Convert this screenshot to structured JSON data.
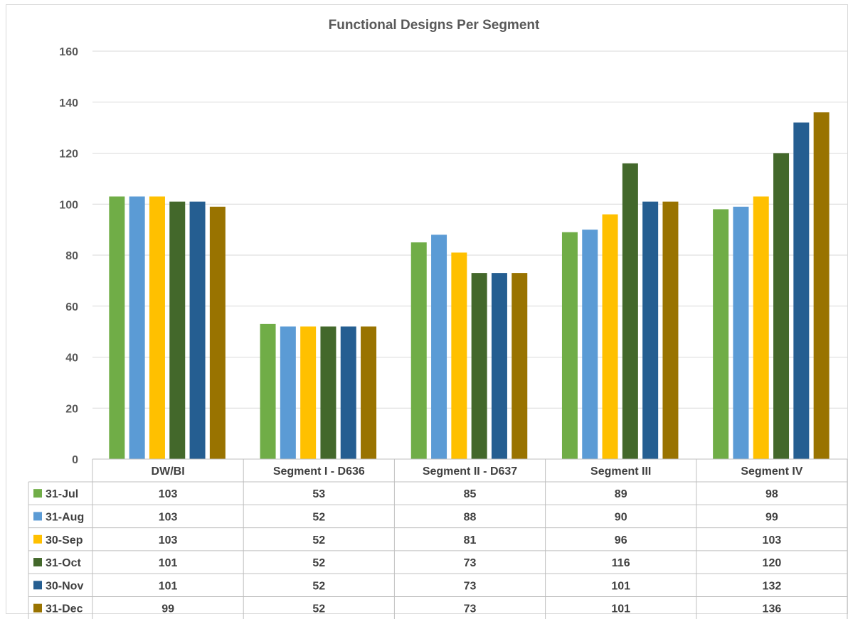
{
  "chart_data": {
    "type": "bar",
    "title": "Functional Designs Per Segment",
    "categories": [
      "DW/BI",
      "Segment I - D636",
      "Segment II - D637",
      "Segment III",
      "Segment IV"
    ],
    "series": [
      {
        "name": "31-Jul",
        "color": "#70ad47",
        "values": [
          103,
          53,
          85,
          89,
          98
        ]
      },
      {
        "name": "31-Aug",
        "color": "#5b9bd5",
        "values": [
          103,
          52,
          88,
          90,
          99
        ]
      },
      {
        "name": "30-Sep",
        "color": "#ffc000",
        "values": [
          103,
          52,
          81,
          96,
          103
        ]
      },
      {
        "name": "31-Oct",
        "color": "#43682b",
        "values": [
          101,
          52,
          73,
          116,
          120
        ]
      },
      {
        "name": "30-Nov",
        "color": "#255e91",
        "values": [
          101,
          52,
          73,
          101,
          132
        ]
      },
      {
        "name": "31-Dec",
        "color": "#997300",
        "values": [
          99,
          52,
          73,
          101,
          136
        ]
      }
    ],
    "ylim": [
      0,
      160
    ],
    "yticks": [
      0,
      20,
      40,
      60,
      80,
      100,
      120,
      140,
      160
    ],
    "grid": true,
    "legend": "data-table"
  }
}
